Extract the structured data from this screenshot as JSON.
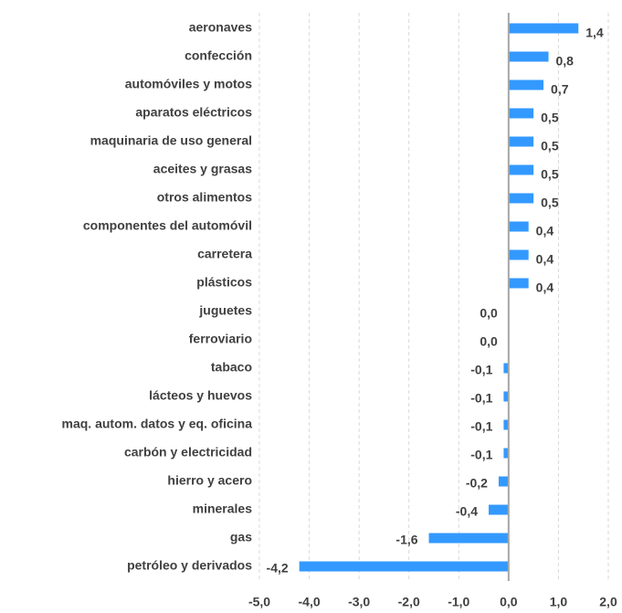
{
  "chart_data": {
    "type": "barh",
    "categories": [
      "aeronaves",
      "confección",
      "automóviles y motos",
      "aparatos eléctricos",
      "maquinaria de uso general",
      "aceites y grasas",
      "otros alimentos",
      "componentes del automóvil",
      "carretera",
      "plásticos",
      "juguetes",
      "ferroviario",
      "tabaco",
      "lácteos y huevos",
      "maq. autom. datos y eq. oficina",
      "carbón y electricidad",
      "hierro y acero",
      "minerales",
      "gas",
      "petróleo y derivados"
    ],
    "values": [
      1.4,
      0.8,
      0.7,
      0.5,
      0.5,
      0.5,
      0.5,
      0.4,
      0.4,
      0.4,
      0.0,
      0.0,
      -0.1,
      -0.1,
      -0.1,
      -0.1,
      -0.2,
      -0.4,
      -1.6,
      -4.2
    ],
    "value_labels": [
      "1,4",
      "0,8",
      "0,7",
      "0,5",
      "0,5",
      "0,5",
      "0,5",
      "0,4",
      "0,4",
      "0,4",
      "0,0",
      "0,0",
      "-0,1",
      "-0,1",
      "-0,1",
      "-0,1",
      "-0,2",
      "-0,4",
      "-1,6",
      "-4,2"
    ],
    "color": "#3399ff",
    "xlim": [
      -5,
      2
    ],
    "xticks": [
      {
        "value": -5,
        "label": "-5,0"
      },
      {
        "value": -4,
        "label": "-4,0"
      },
      {
        "value": -3,
        "label": "-3,0"
      },
      {
        "value": -2,
        "label": "-2,0"
      },
      {
        "value": -1,
        "label": "-1,0"
      },
      {
        "value": 0,
        "label": "0,0"
      },
      {
        "value": 1,
        "label": "1,0"
      },
      {
        "value": 2,
        "label": "2,0"
      }
    ],
    "grid": true
  }
}
